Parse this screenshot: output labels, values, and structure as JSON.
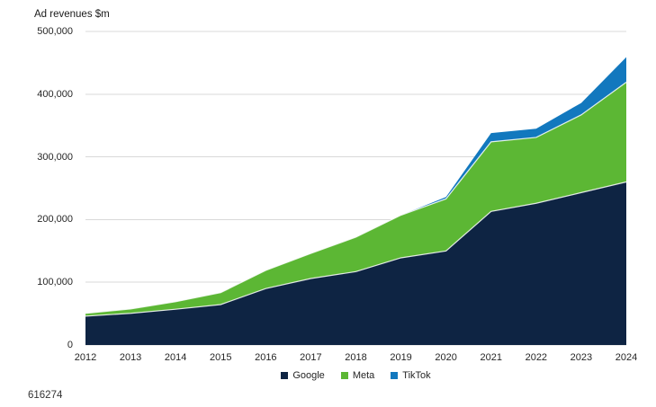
{
  "chart_data": {
    "type": "area",
    "stacked": true,
    "title": "Ad revenues $m",
    "xlabel": "",
    "ylabel": "Ad revenues $m",
    "ylim": [
      0,
      500000
    ],
    "grid": true,
    "legend_position": "bottom",
    "grid_color": "#d9d9d9",
    "boundary_stroke": "rgba(255,255,255,0.85)",
    "categories": [
      "2012",
      "2013",
      "2014",
      "2015",
      "2016",
      "2017",
      "2018",
      "2019",
      "2020",
      "2021",
      "2022",
      "2023",
      "2024"
    ],
    "y_ticks": [
      {
        "value": 0,
        "label": "0"
      },
      {
        "value": 100000,
        "label": "100,000"
      },
      {
        "value": 200000,
        "label": "200,000"
      },
      {
        "value": 300000,
        "label": "300,000"
      },
      {
        "value": 400000,
        "label": "400,000"
      },
      {
        "value": 500000,
        "label": "500,000"
      }
    ],
    "series": [
      {
        "name": "Google",
        "color": "#0e2443",
        "values": [
          46000,
          50500,
          57000,
          64500,
          90000,
          106000,
          117000,
          139000,
          150000,
          213000,
          226000,
          243000,
          260000
        ]
      },
      {
        "name": "Meta",
        "color": "#5cb734",
        "values": [
          4500,
          7000,
          12000,
          19000,
          29000,
          40000,
          55000,
          68000,
          83000,
          111000,
          105000,
          124000,
          159000
        ]
      },
      {
        "name": "TikTok",
        "color": "#1278be",
        "values": [
          0,
          0,
          0,
          0,
          0,
          0,
          0,
          0,
          3000,
          14000,
          14000,
          19000,
          40000
        ]
      }
    ]
  },
  "footer": {
    "code": "616274"
  }
}
